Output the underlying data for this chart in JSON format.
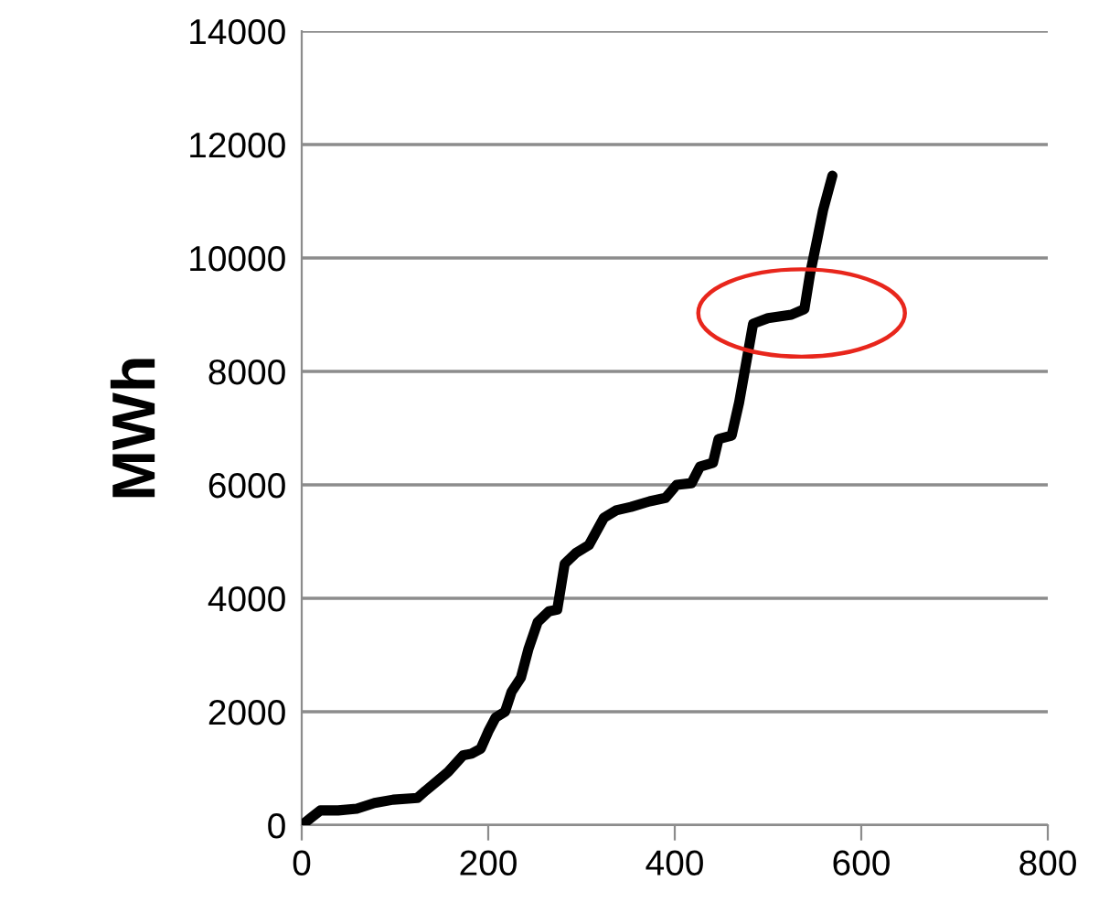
{
  "chart_data": {
    "type": "line",
    "ylabel": "MWh",
    "color": "#000000",
    "x": [
      0,
      10,
      20,
      39,
      59,
      78,
      98,
      124,
      133,
      147,
      157,
      173,
      182,
      192,
      200,
      208,
      218,
      225,
      235,
      243,
      253,
      265,
      274,
      282,
      294,
      308,
      324,
      337,
      353,
      373,
      390,
      402,
      418,
      427,
      441,
      447,
      461,
      469,
      484,
      500,
      525,
      539,
      545,
      553,
      559,
      569
    ],
    "values": [
      0,
      130,
      260,
      260,
      290,
      390,
      450,
      480,
      610,
      800,
      940,
      1230,
      1260,
      1350,
      1650,
      1900,
      2000,
      2350,
      2600,
      3100,
      3580,
      3770,
      3800,
      4610,
      4800,
      4940,
      5420,
      5550,
      5610,
      5710,
      5770,
      6000,
      6030,
      6320,
      6390,
      6810,
      6870,
      7450,
      8840,
      8940,
      9000,
      9100,
      9710,
      10350,
      10840,
      11450
    ],
    "xlim": [
      0,
      800
    ],
    "xticks": [
      0,
      200,
      400,
      600,
      800
    ],
    "ylim": [
      0,
      14000
    ],
    "yticks": [
      0,
      2000,
      4000,
      6000,
      8000,
      10000,
      12000,
      14000
    ],
    "grid": "y",
    "marker": "none",
    "line_style": "solid"
  }
}
